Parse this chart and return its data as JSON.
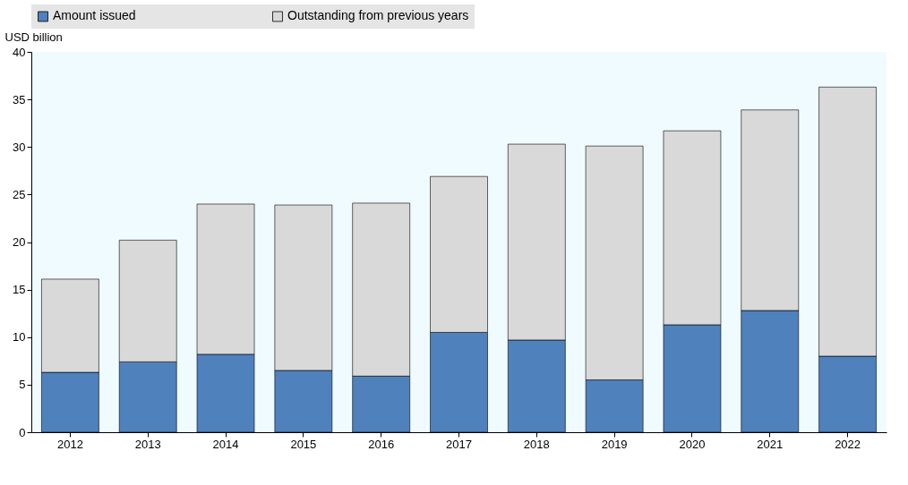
{
  "chart_data": {
    "type": "bar",
    "stacked": true,
    "ylabel": "USD billion",
    "categories": [
      "2012",
      "2013",
      "2014",
      "2015",
      "2016",
      "2017",
      "2018",
      "2019",
      "2020",
      "2021",
      "2022"
    ],
    "series": [
      {
        "name": "Amount issued",
        "color": "#4f81bd",
        "values": [
          6.3,
          7.4,
          8.2,
          6.5,
          5.9,
          10.5,
          9.7,
          5.5,
          11.3,
          12.8,
          8.0
        ]
      },
      {
        "name": "Outstanding from previous years",
        "color": "#d9d9d9",
        "values": [
          9.8,
          12.8,
          15.8,
          17.4,
          18.2,
          16.4,
          20.6,
          24.6,
          20.4,
          21.1,
          28.3
        ]
      }
    ],
    "ylim": [
      0,
      40
    ],
    "yticks": [
      0,
      5,
      10,
      15,
      20,
      25,
      30,
      35,
      40
    ],
    "grid": false,
    "legend": "top"
  }
}
